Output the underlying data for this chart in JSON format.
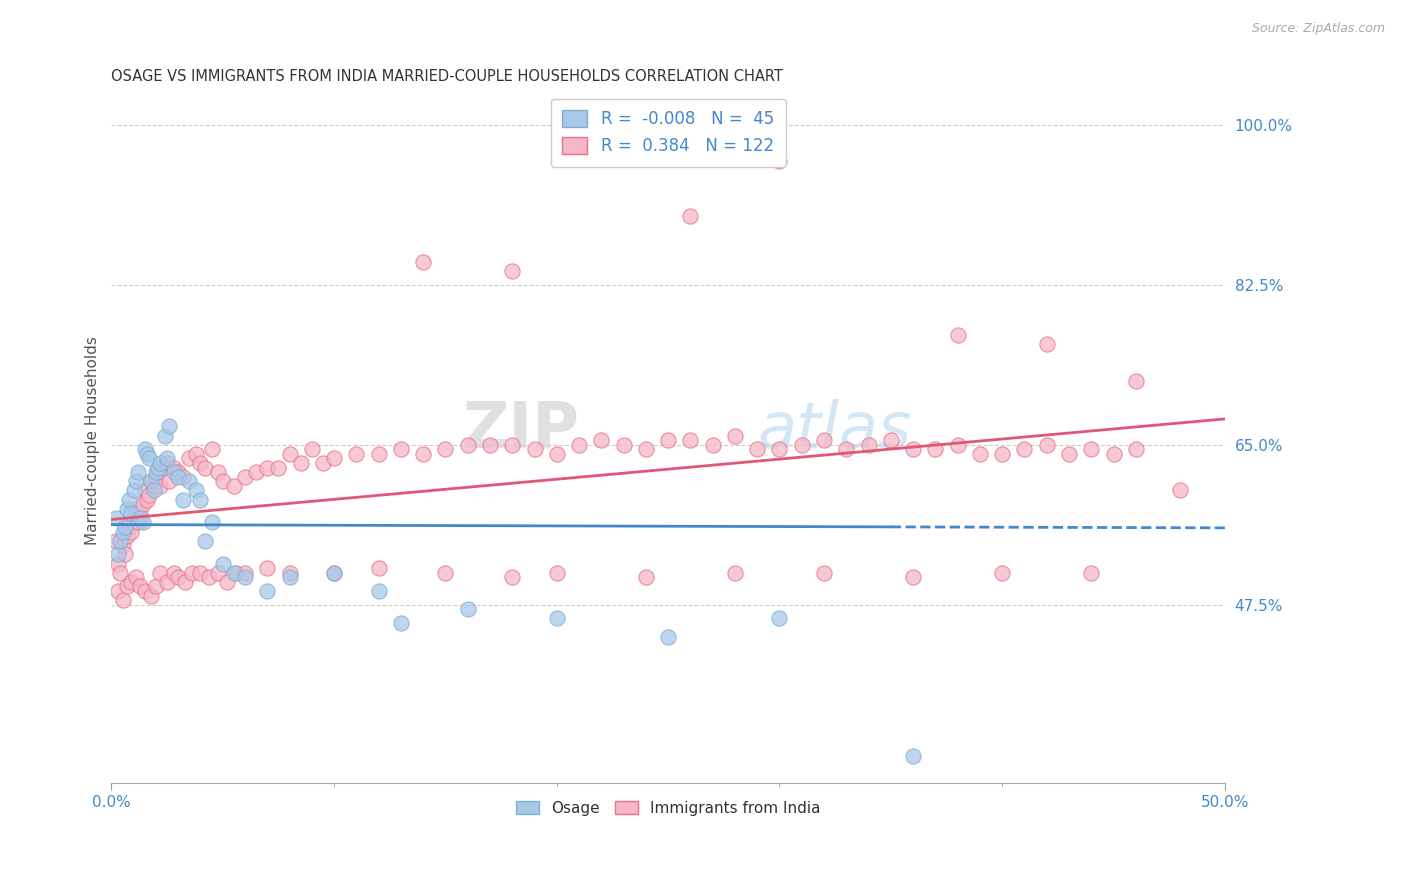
{
  "title": "OSAGE VS IMMIGRANTS FROM INDIA MARRIED-COUPLE HOUSEHOLDS CORRELATION CHART",
  "source": "Source: ZipAtlas.com",
  "xlabel_blue": "Osage",
  "xlabel_pink": "Immigrants from India",
  "ylabel": "Married-couple Households",
  "r_blue": -0.008,
  "n_blue": 45,
  "r_pink": 0.384,
  "n_pink": 122,
  "xlim": [
    0.0,
    0.5
  ],
  "ylim": [
    0.28,
    1.03
  ],
  "yticks": [
    0.475,
    0.65,
    0.825,
    1.0
  ],
  "ytick_labels": [
    "47.5%",
    "65.0%",
    "82.5%",
    "100.0%"
  ],
  "xticks": [
    0.0,
    0.5
  ],
  "xtick_labels": [
    "0.0%",
    "50.0%"
  ],
  "watermark_zip": "ZIP",
  "watermark_atlas": "atlas",
  "color_blue": "#a8c8e8",
  "color_blue_edge": "#7aafd4",
  "color_pink": "#f4b8c8",
  "color_pink_edge": "#e8708a",
  "color_line_blue": "#4488cc",
  "color_line_pink": "#e05878",
  "color_axis_labels": "#4488cc",
  "color_grid": "#cccccc",
  "blue_line_solid_end": 0.35,
  "blue_line_y": 0.557,
  "blue_scatter_x": [
    0.002,
    0.003,
    0.004,
    0.005,
    0.006,
    0.007,
    0.008,
    0.009,
    0.01,
    0.011,
    0.012,
    0.013,
    0.014,
    0.015,
    0.016,
    0.017,
    0.018,
    0.019,
    0.02,
    0.021,
    0.022,
    0.024,
    0.025,
    0.026,
    0.028,
    0.03,
    0.032,
    0.035,
    0.038,
    0.04,
    0.042,
    0.045,
    0.05,
    0.055,
    0.06,
    0.07,
    0.08,
    0.1,
    0.12,
    0.13,
    0.16,
    0.2,
    0.25,
    0.3,
    0.36
  ],
  "blue_scatter_y": [
    0.57,
    0.53,
    0.545,
    0.555,
    0.56,
    0.58,
    0.59,
    0.575,
    0.6,
    0.61,
    0.62,
    0.57,
    0.565,
    0.645,
    0.64,
    0.635,
    0.61,
    0.6,
    0.62,
    0.625,
    0.63,
    0.66,
    0.635,
    0.67,
    0.62,
    0.615,
    0.59,
    0.61,
    0.6,
    0.59,
    0.545,
    0.565,
    0.52,
    0.51,
    0.505,
    0.49,
    0.505,
    0.51,
    0.49,
    0.455,
    0.47,
    0.46,
    0.44,
    0.46,
    0.31
  ],
  "pink_scatter_x": [
    0.002,
    0.003,
    0.004,
    0.005,
    0.006,
    0.007,
    0.008,
    0.009,
    0.01,
    0.011,
    0.012,
    0.013,
    0.014,
    0.015,
    0.016,
    0.017,
    0.018,
    0.019,
    0.02,
    0.021,
    0.022,
    0.024,
    0.025,
    0.026,
    0.028,
    0.03,
    0.032,
    0.035,
    0.038,
    0.04,
    0.042,
    0.045,
    0.048,
    0.05,
    0.055,
    0.06,
    0.065,
    0.07,
    0.075,
    0.08,
    0.085,
    0.09,
    0.095,
    0.1,
    0.11,
    0.12,
    0.13,
    0.14,
    0.15,
    0.16,
    0.17,
    0.18,
    0.19,
    0.2,
    0.21,
    0.22,
    0.23,
    0.24,
    0.25,
    0.26,
    0.27,
    0.28,
    0.29,
    0.3,
    0.31,
    0.32,
    0.33,
    0.34,
    0.35,
    0.36,
    0.37,
    0.38,
    0.39,
    0.4,
    0.41,
    0.42,
    0.43,
    0.44,
    0.45,
    0.46,
    0.003,
    0.005,
    0.007,
    0.009,
    0.011,
    0.013,
    0.015,
    0.018,
    0.02,
    0.022,
    0.025,
    0.028,
    0.03,
    0.033,
    0.036,
    0.04,
    0.044,
    0.048,
    0.052,
    0.056,
    0.06,
    0.07,
    0.08,
    0.1,
    0.12,
    0.15,
    0.18,
    0.2,
    0.24,
    0.28,
    0.32,
    0.36,
    0.4,
    0.44,
    0.3,
    0.26,
    0.18,
    0.14,
    0.38,
    0.42,
    0.46,
    0.48
  ],
  "pink_scatter_y": [
    0.545,
    0.52,
    0.51,
    0.54,
    0.53,
    0.55,
    0.56,
    0.555,
    0.57,
    0.58,
    0.565,
    0.575,
    0.585,
    0.6,
    0.59,
    0.595,
    0.61,
    0.605,
    0.615,
    0.62,
    0.605,
    0.625,
    0.63,
    0.61,
    0.625,
    0.62,
    0.615,
    0.635,
    0.64,
    0.63,
    0.625,
    0.645,
    0.62,
    0.61,
    0.605,
    0.615,
    0.62,
    0.625,
    0.625,
    0.64,
    0.63,
    0.645,
    0.63,
    0.635,
    0.64,
    0.64,
    0.645,
    0.64,
    0.645,
    0.65,
    0.65,
    0.65,
    0.645,
    0.64,
    0.65,
    0.655,
    0.65,
    0.645,
    0.655,
    0.655,
    0.65,
    0.66,
    0.645,
    0.645,
    0.65,
    0.655,
    0.645,
    0.65,
    0.655,
    0.645,
    0.645,
    0.65,
    0.64,
    0.64,
    0.645,
    0.65,
    0.64,
    0.645,
    0.64,
    0.645,
    0.49,
    0.48,
    0.495,
    0.5,
    0.505,
    0.495,
    0.49,
    0.485,
    0.495,
    0.51,
    0.5,
    0.51,
    0.505,
    0.5,
    0.51,
    0.51,
    0.505,
    0.51,
    0.5,
    0.51,
    0.51,
    0.515,
    0.51,
    0.51,
    0.515,
    0.51,
    0.505,
    0.51,
    0.505,
    0.51,
    0.51,
    0.505,
    0.51,
    0.51,
    0.96,
    0.9,
    0.84,
    0.85,
    0.77,
    0.76,
    0.72,
    0.6
  ]
}
